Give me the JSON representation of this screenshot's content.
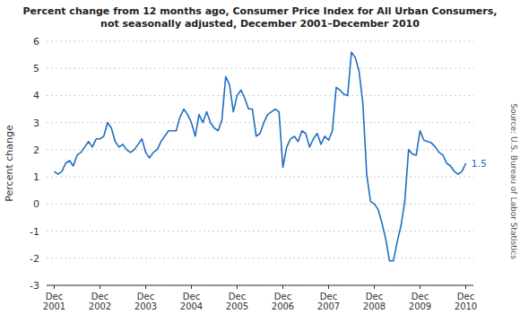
{
  "chart_data": {
    "type": "line",
    "title": "Percent change from 12 months ago, Consumer Price Index for All Urban Consumers,\nnot seasonally adjusted, December 2001–December 2010",
    "ylabel": "Percent change",
    "annotation": "1.5",
    "source": "Source: U.S. Bureau of Labor Statistics",
    "color": "#1F6FBF",
    "grid": true,
    "ylim": [
      -3,
      6
    ],
    "yticks": [
      -3,
      -2,
      -1,
      0,
      1,
      2,
      3,
      4,
      5,
      6
    ],
    "categories": [
      "Dec\n2001",
      null,
      null,
      null,
      null,
      null,
      null,
      null,
      null,
      null,
      null,
      null,
      "Dec\n2002",
      null,
      null,
      null,
      null,
      null,
      null,
      null,
      null,
      null,
      null,
      null,
      "Dec\n2003",
      null,
      null,
      null,
      null,
      null,
      null,
      null,
      null,
      null,
      null,
      null,
      "Dec\n2004",
      null,
      null,
      null,
      null,
      null,
      null,
      null,
      null,
      null,
      null,
      null,
      "Dec\n2005",
      null,
      null,
      null,
      null,
      null,
      null,
      null,
      null,
      null,
      null,
      null,
      "Dec\n2006",
      null,
      null,
      null,
      null,
      null,
      null,
      null,
      null,
      null,
      null,
      null,
      "Dec\n2007",
      null,
      null,
      null,
      null,
      null,
      null,
      null,
      null,
      null,
      null,
      null,
      "Dec\n2008",
      null,
      null,
      null,
      null,
      null,
      null,
      null,
      null,
      null,
      null,
      null,
      "Dec\n2009",
      null,
      null,
      null,
      null,
      null,
      null,
      null,
      null,
      null,
      null,
      null,
      "Dec\n2010"
    ],
    "values": [
      1.2,
      1.1,
      1.2,
      1.5,
      1.6,
      1.4,
      1.8,
      1.9,
      2.1,
      2.3,
      2.1,
      2.4,
      2.4,
      2.5,
      3.0,
      2.8,
      2.3,
      2.1,
      2.2,
      2.0,
      1.9,
      2.0,
      2.2,
      2.4,
      1.9,
      1.7,
      1.9,
      2.0,
      2.3,
      2.5,
      2.7,
      2.7,
      2.7,
      3.2,
      3.5,
      3.3,
      3.0,
      2.5,
      3.3,
      3.0,
      3.4,
      3.0,
      2.8,
      2.7,
      3.1,
      4.7,
      4.4,
      3.4,
      4.0,
      4.2,
      3.9,
      3.5,
      3.5,
      2.5,
      2.6,
      3.0,
      3.3,
      3.4,
      3.5,
      3.4,
      1.35,
      2.1,
      2.4,
      2.5,
      2.3,
      2.7,
      2.6,
      2.1,
      2.4,
      2.6,
      2.2,
      2.5,
      2.35,
      2.7,
      4.3,
      4.2,
      4.05,
      4.0,
      5.6,
      5.4,
      4.9,
      3.7,
      1.1,
      0.1,
      0.0,
      -0.2,
      -0.7,
      -1.3,
      -2.1,
      -2.1,
      -1.4,
      -0.8,
      0.1,
      2.0,
      1.84,
      1.8,
      2.7,
      2.35,
      2.3,
      2.25,
      2.1,
      1.9,
      1.8,
      1.5,
      1.4,
      1.2,
      1.1,
      1.2,
      1.5
    ]
  }
}
